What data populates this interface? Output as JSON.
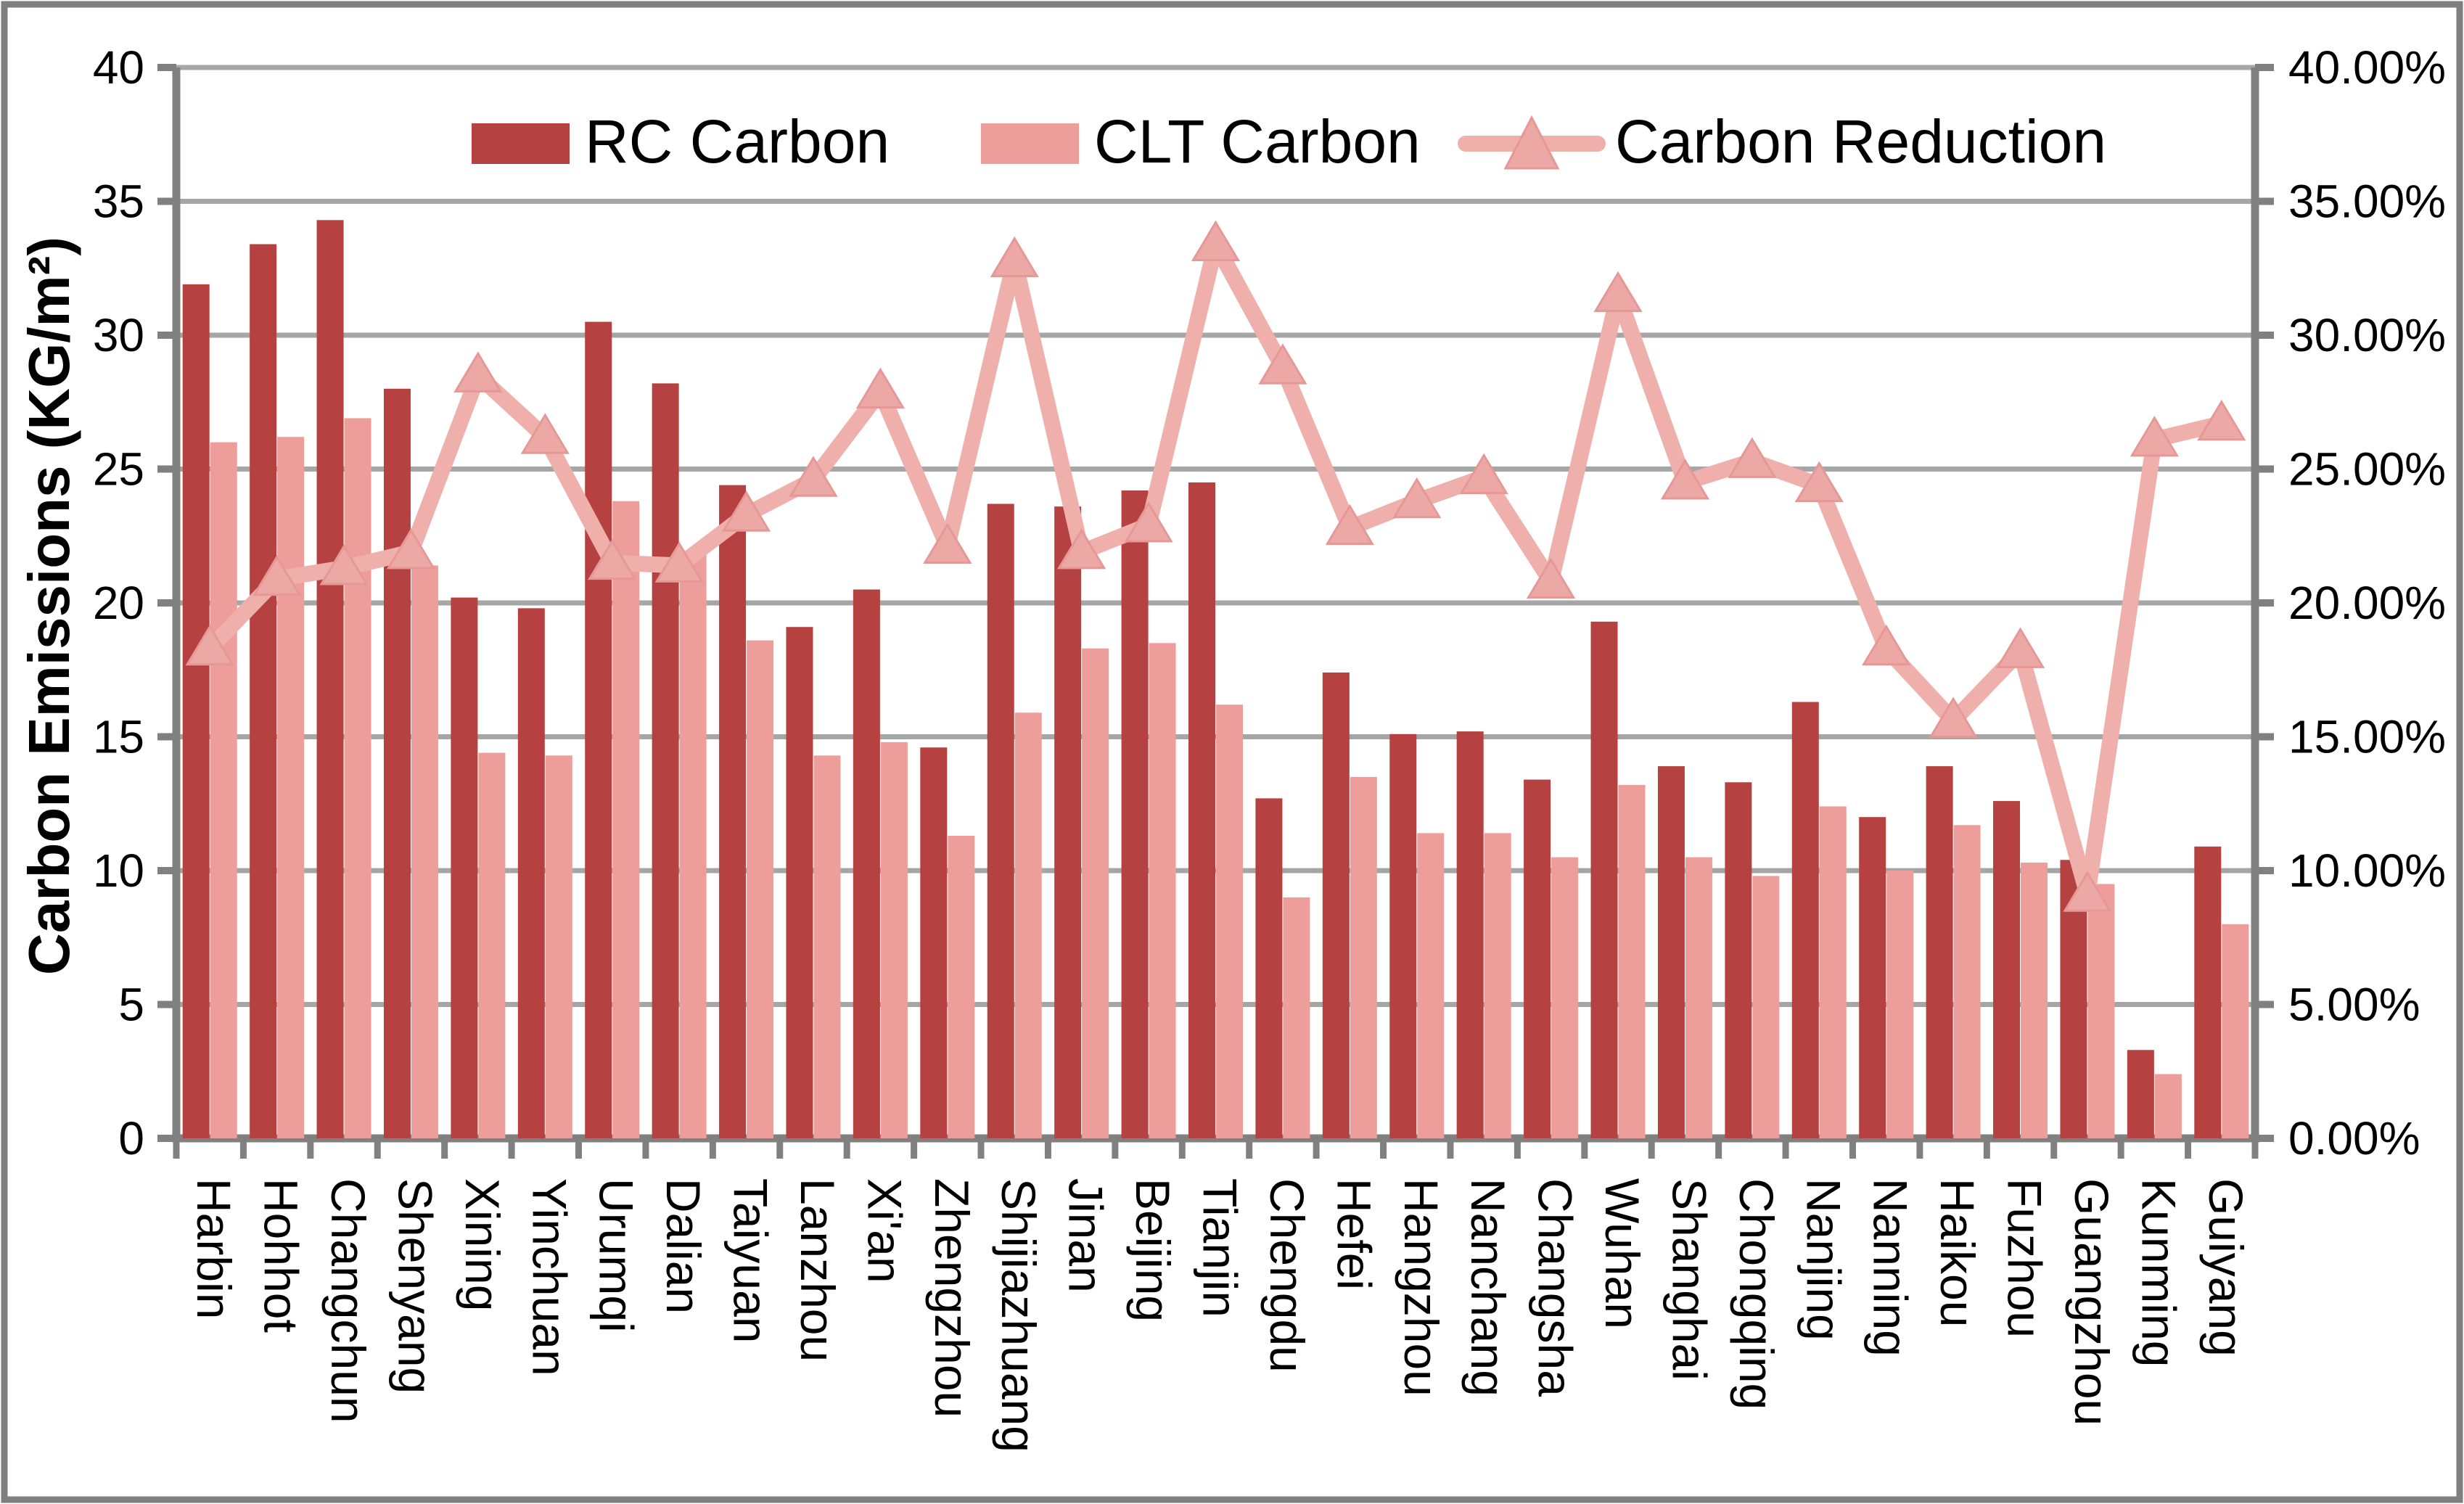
{
  "chart_data": {
    "type": "bar",
    "subtype": "grouped-bars-with-percent-line",
    "title": "",
    "xlabel": "",
    "categories": [
      "Harbin",
      "Hohhot",
      "Changchun",
      "Shenyang",
      "Xining",
      "Yinchuan",
      "Urumqi",
      "Dalian",
      "Taiyuan",
      "Lanzhou",
      "Xi'an",
      "Zhengzhou",
      "Shijiazhuang",
      "Jinan",
      "Beijing",
      "Tianjin",
      "Chengdu",
      "Hefei",
      "Hangzhou",
      "Nanchang",
      "Changsha",
      "Wuhan",
      "Shanghai",
      "Chongqing",
      "Nanjing",
      "Nanning",
      "Haikou",
      "Fuzhou",
      "Guangzhou",
      "Kunming",
      "Guiyang"
    ],
    "series": [
      {
        "name": "RC Carbon",
        "type": "bar",
        "axis": "left",
        "color": "#B54240",
        "values": [
          31.9,
          33.4,
          34.3,
          28.0,
          20.2,
          19.8,
          30.5,
          28.2,
          24.4,
          19.1,
          20.5,
          14.6,
          23.7,
          23.6,
          24.2,
          24.5,
          12.7,
          17.4,
          15.1,
          15.2,
          13.4,
          19.3,
          13.9,
          13.3,
          16.3,
          12.0,
          13.9,
          12.6,
          10.4,
          3.3,
          10.9
        ]
      },
      {
        "name": "CLT Carbon",
        "type": "bar",
        "axis": "left",
        "color": "#EE9E9A",
        "values": [
          26.0,
          26.2,
          26.9,
          21.4,
          14.4,
          14.3,
          23.8,
          21.8,
          18.6,
          14.3,
          14.8,
          11.3,
          15.9,
          18.3,
          18.5,
          16.2,
          9.0,
          13.5,
          11.4,
          11.4,
          10.5,
          13.2,
          10.5,
          9.8,
          12.4,
          10.0,
          11.7,
          10.3,
          9.5,
          2.4,
          8.0
        ]
      },
      {
        "name": "Carbon Reduction",
        "type": "line",
        "axis": "right",
        "color": "#EFAFAB",
        "marker": "triangle-up",
        "marker_color": "#ECA8A4",
        "marker_stroke": "#E59896",
        "values_percent": [
          18.3,
          20.9,
          21.3,
          21.9,
          28.5,
          26.2,
          21.5,
          21.4,
          23.3,
          24.6,
          27.9,
          22.1,
          32.8,
          21.9,
          22.9,
          33.4,
          28.8,
          22.8,
          23.8,
          24.7,
          20.8,
          31.5,
          24.5,
          25.3,
          24.4,
          18.3,
          15.6,
          18.2,
          9.1,
          26.1,
          26.7
        ]
      }
    ],
    "left_axis": {
      "label": "Carbon Emissions (KG/m²)",
      "min": 0,
      "max": 40,
      "step": 5,
      "ticks": [
        "0",
        "5",
        "10",
        "15",
        "20",
        "25",
        "30",
        "35",
        "40"
      ]
    },
    "right_axis": {
      "label": "",
      "min": 0,
      "max": 40,
      "step": 5,
      "ticks": [
        "0.00%",
        "5.00%",
        "10.00%",
        "15.00%",
        "20.00%",
        "25.00%",
        "30.00%",
        "35.00%",
        "40.00%"
      ]
    },
    "legend": {
      "position": "top",
      "entries": [
        "RC Carbon",
        "CLT Carbon",
        "Carbon Reduction"
      ]
    },
    "grid": true,
    "colors": {
      "grid": "#A6A6A6",
      "axis": "#808080",
      "border": "#7F7F7F",
      "text": "#000000",
      "background": "#FFFFFF"
    }
  }
}
